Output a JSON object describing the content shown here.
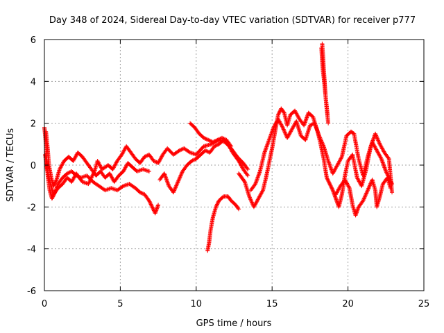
{
  "chart_data": {
    "type": "scatter",
    "title": "Day 348 of 2024, Sidereal Day-to-day VTEC variation (SDTVAR) for receiver p777",
    "xlabel": "GPS time / hours",
    "ylabel": "SDTVAR / TECUs",
    "xlim": [
      0,
      25
    ],
    "ylim": [
      -6,
      6
    ],
    "xticks": [
      0,
      5,
      10,
      15,
      20,
      25
    ],
    "yticks": [
      -6,
      -4,
      -2,
      0,
      2,
      4,
      6
    ],
    "grid": true,
    "marker": "+",
    "series": [
      {
        "name": "SDTVAR",
        "color": "#ff0000",
        "tracks": [
          [
            [
              0.0,
              1.8
            ],
            [
              0.08,
              1.2
            ],
            [
              0.15,
              0.4
            ],
            [
              0.22,
              -0.5
            ],
            [
              0.35,
              -1.2
            ],
            [
              0.5,
              -1.6
            ],
            [
              0.7,
              -1.3
            ],
            [
              0.9,
              -0.9
            ],
            [
              1.2,
              -0.6
            ],
            [
              1.5,
              -0.4
            ],
            [
              1.8,
              -0.3
            ],
            [
              2.1,
              -0.5
            ],
            [
              2.4,
              -0.6
            ],
            [
              2.8,
              -0.5
            ],
            [
              3.2,
              -0.8
            ],
            [
              3.6,
              -1.0
            ],
            [
              4.0,
              -1.2
            ],
            [
              4.4,
              -1.1
            ],
            [
              4.8,
              -1.2
            ],
            [
              5.2,
              -1.0
            ],
            [
              5.6,
              -0.9
            ],
            [
              6.0,
              -1.1
            ],
            [
              6.3,
              -1.3
            ],
            [
              6.6,
              -1.4
            ],
            [
              6.9,
              -1.7
            ],
            [
              7.1,
              -2.0
            ],
            [
              7.3,
              -2.3
            ],
            [
              7.5,
              -1.9
            ]
          ],
          [
            [
              0.1,
              1.6
            ],
            [
              0.2,
              0.9
            ],
            [
              0.3,
              0.0
            ],
            [
              0.45,
              -0.6
            ],
            [
              0.6,
              -1.0
            ],
            [
              0.8,
              -0.7
            ],
            [
              1.0,
              -0.2
            ],
            [
              1.3,
              0.2
            ],
            [
              1.6,
              0.4
            ],
            [
              1.9,
              0.2
            ],
            [
              2.2,
              0.6
            ],
            [
              2.5,
              0.4
            ],
            [
              2.8,
              0.1
            ],
            [
              3.1,
              -0.2
            ],
            [
              3.4,
              -0.5
            ],
            [
              3.7,
              -0.3
            ],
            [
              4.0,
              -0.6
            ],
            [
              4.3,
              -0.4
            ],
            [
              4.6,
              -0.8
            ],
            [
              4.9,
              -0.5
            ],
            [
              5.2,
              -0.3
            ],
            [
              5.5,
              0.1
            ],
            [
              5.8,
              -0.1
            ],
            [
              6.1,
              -0.3
            ],
            [
              6.5,
              -0.2
            ],
            [
              6.9,
              -0.3
            ]
          ],
          [
            [
              0.05,
              0.5
            ],
            [
              0.2,
              -0.3
            ],
            [
              0.4,
              -0.9
            ],
            [
              0.6,
              -1.4
            ],
            [
              0.9,
              -1.1
            ],
            [
              1.2,
              -0.9
            ],
            [
              1.5,
              -0.6
            ],
            [
              1.8,
              -0.8
            ],
            [
              2.1,
              -0.4
            ],
            [
              2.5,
              -0.8
            ],
            [
              2.9,
              -0.9
            ],
            [
              3.3,
              -0.3
            ],
            [
              3.5,
              0.2
            ],
            [
              3.8,
              -0.2
            ],
            [
              4.2,
              0.0
            ],
            [
              4.5,
              -0.2
            ],
            [
              4.8,
              0.2
            ],
            [
              5.1,
              0.5
            ],
            [
              5.4,
              0.9
            ],
            [
              5.7,
              0.6
            ],
            [
              6.0,
              0.3
            ],
            [
              6.3,
              0.1
            ],
            [
              6.6,
              0.4
            ],
            [
              6.9,
              0.5
            ],
            [
              7.2,
              0.2
            ],
            [
              7.5,
              0.1
            ],
            [
              7.8,
              0.5
            ],
            [
              8.1,
              0.8
            ],
            [
              8.5,
              0.5
            ],
            [
              8.9,
              0.7
            ],
            [
              9.2,
              0.8
            ],
            [
              9.6,
              0.6
            ],
            [
              10.0,
              0.5
            ],
            [
              10.5,
              0.9
            ],
            [
              11.0,
              1.0
            ],
            [
              11.5,
              1.2
            ],
            [
              11.9,
              1.1
            ],
            [
              12.3,
              0.8
            ],
            [
              12.7,
              0.4
            ],
            [
              13.1,
              0.1
            ],
            [
              13.4,
              -0.2
            ]
          ],
          [
            [
              7.6,
              -0.7
            ],
            [
              7.9,
              -0.4
            ],
            [
              8.2,
              -1.0
            ],
            [
              8.5,
              -1.3
            ],
            [
              8.8,
              -0.8
            ],
            [
              9.1,
              -0.3
            ],
            [
              9.4,
              0.0
            ],
            [
              9.7,
              0.2
            ],
            [
              10.0,
              0.3
            ],
            [
              10.3,
              0.5
            ],
            [
              10.6,
              0.7
            ],
            [
              10.9,
              0.6
            ],
            [
              11.2,
              0.9
            ],
            [
              11.5,
              1.0
            ],
            [
              11.8,
              1.2
            ],
            [
              12.1,
              1.0
            ],
            [
              12.4,
              0.6
            ],
            [
              12.8,
              0.2
            ],
            [
              13.1,
              -0.2
            ],
            [
              13.4,
              -0.5
            ]
          ],
          [
            [
              9.6,
              2.0
            ],
            [
              9.9,
              1.8
            ],
            [
              10.2,
              1.5
            ],
            [
              10.5,
              1.3
            ],
            [
              10.8,
              1.2
            ],
            [
              11.1,
              1.1
            ],
            [
              11.4,
              1.2
            ],
            [
              11.7,
              1.3
            ],
            [
              12.0,
              1.2
            ],
            [
              12.3,
              0.9
            ]
          ],
          [
            [
              10.75,
              -4.1
            ],
            [
              10.85,
              -3.7
            ],
            [
              10.95,
              -3.1
            ],
            [
              11.1,
              -2.5
            ],
            [
              11.3,
              -2.0
            ],
            [
              11.5,
              -1.7
            ],
            [
              11.8,
              -1.5
            ],
            [
              12.1,
              -1.5
            ],
            [
              12.3,
              -1.7
            ],
            [
              12.6,
              -1.9
            ],
            [
              12.8,
              -2.1
            ]
          ],
          [
            [
              12.8,
              -0.4
            ],
            [
              13.2,
              -0.8
            ],
            [
              13.5,
              -1.5
            ],
            [
              13.8,
              -2.0
            ],
            [
              14.1,
              -1.6
            ],
            [
              14.4,
              -1.2
            ],
            [
              14.6,
              -0.6
            ],
            [
              14.8,
              0.1
            ],
            [
              15.0,
              0.8
            ],
            [
              15.2,
              1.6
            ],
            [
              15.4,
              2.4
            ],
            [
              15.6,
              2.7
            ],
            [
              15.8,
              2.5
            ],
            [
              16.0,
              1.9
            ],
            [
              16.2,
              2.4
            ],
            [
              16.5,
              2.6
            ],
            [
              16.8,
              2.2
            ],
            [
              17.1,
              1.9
            ],
            [
              17.4,
              2.5
            ],
            [
              17.7,
              2.3
            ],
            [
              18.0,
              1.6
            ],
            [
              18.2,
              1.0
            ],
            [
              18.4,
              0.3
            ],
            [
              18.6,
              -0.6
            ],
            [
              18.8,
              -0.9
            ],
            [
              19.0,
              -1.2
            ],
            [
              19.2,
              -1.6
            ],
            [
              19.4,
              -2.0
            ],
            [
              19.6,
              -1.4
            ],
            [
              19.8,
              -0.5
            ],
            [
              20.0,
              0.2
            ],
            [
              20.3,
              0.5
            ],
            [
              20.6,
              -0.6
            ],
            [
              20.9,
              -1.0
            ],
            [
              21.2,
              -0.2
            ],
            [
              21.5,
              0.9
            ],
            [
              21.8,
              1.5
            ],
            [
              22.1,
              1.0
            ],
            [
              22.4,
              0.6
            ],
            [
              22.7,
              0.3
            ],
            [
              22.9,
              -1.3
            ]
          ],
          [
            [
              13.6,
              -1.2
            ],
            [
              13.9,
              -0.9
            ],
            [
              14.2,
              -0.3
            ],
            [
              14.5,
              0.6
            ],
            [
              14.8,
              1.2
            ],
            [
              15.1,
              1.8
            ],
            [
              15.4,
              2.2
            ],
            [
              15.7,
              1.8
            ],
            [
              16.0,
              1.3
            ],
            [
              16.3,
              1.7
            ],
            [
              16.6,
              2.1
            ],
            [
              16.9,
              1.4
            ],
            [
              17.2,
              1.2
            ],
            [
              17.5,
              1.9
            ],
            [
              17.8,
              2.0
            ],
            [
              18.1,
              1.4
            ],
            [
              18.4,
              0.9
            ],
            [
              18.7,
              0.2
            ],
            [
              19.0,
              -0.4
            ],
            [
              19.3,
              0.0
            ],
            [
              19.6,
              0.4
            ],
            [
              19.9,
              1.4
            ],
            [
              20.2,
              1.6
            ],
            [
              20.4,
              1.5
            ],
            [
              20.7,
              0.3
            ],
            [
              21.0,
              -0.5
            ],
            [
              21.3,
              0.4
            ],
            [
              21.6,
              1.1
            ],
            [
              21.9,
              0.7
            ],
            [
              22.2,
              0.3
            ],
            [
              22.5,
              -0.3
            ],
            [
              22.7,
              -0.6
            ],
            [
              22.9,
              -0.9
            ]
          ],
          [
            [
              18.3,
              5.8
            ],
            [
              18.35,
              5.3
            ],
            [
              18.4,
              4.6
            ],
            [
              18.45,
              4.1
            ],
            [
              18.5,
              3.5
            ],
            [
              18.6,
              2.7
            ],
            [
              18.7,
              2.0
            ]
          ],
          [
            [
              18.25,
              5.6
            ],
            [
              18.3,
              5.0
            ],
            [
              18.35,
              4.5
            ],
            [
              18.45,
              3.9
            ],
            [
              18.55,
              3.1
            ],
            [
              18.65,
              2.4
            ]
          ],
          [
            [
              19.2,
              -1.4
            ],
            [
              19.5,
              -1.0
            ],
            [
              19.8,
              -0.7
            ],
            [
              20.1,
              -1.1
            ],
            [
              20.3,
              -1.9
            ],
            [
              20.5,
              -2.4
            ],
            [
              20.7,
              -2.0
            ],
            [
              21.0,
              -1.7
            ],
            [
              21.3,
              -1.2
            ],
            [
              21.6,
              -0.7
            ],
            [
              21.8,
              -1.2
            ],
            [
              21.9,
              -2.0
            ],
            [
              22.1,
              -1.5
            ],
            [
              22.3,
              -0.9
            ],
            [
              22.6,
              -0.6
            ],
            [
              22.8,
              -1.1
            ]
          ]
        ]
      }
    ]
  }
}
